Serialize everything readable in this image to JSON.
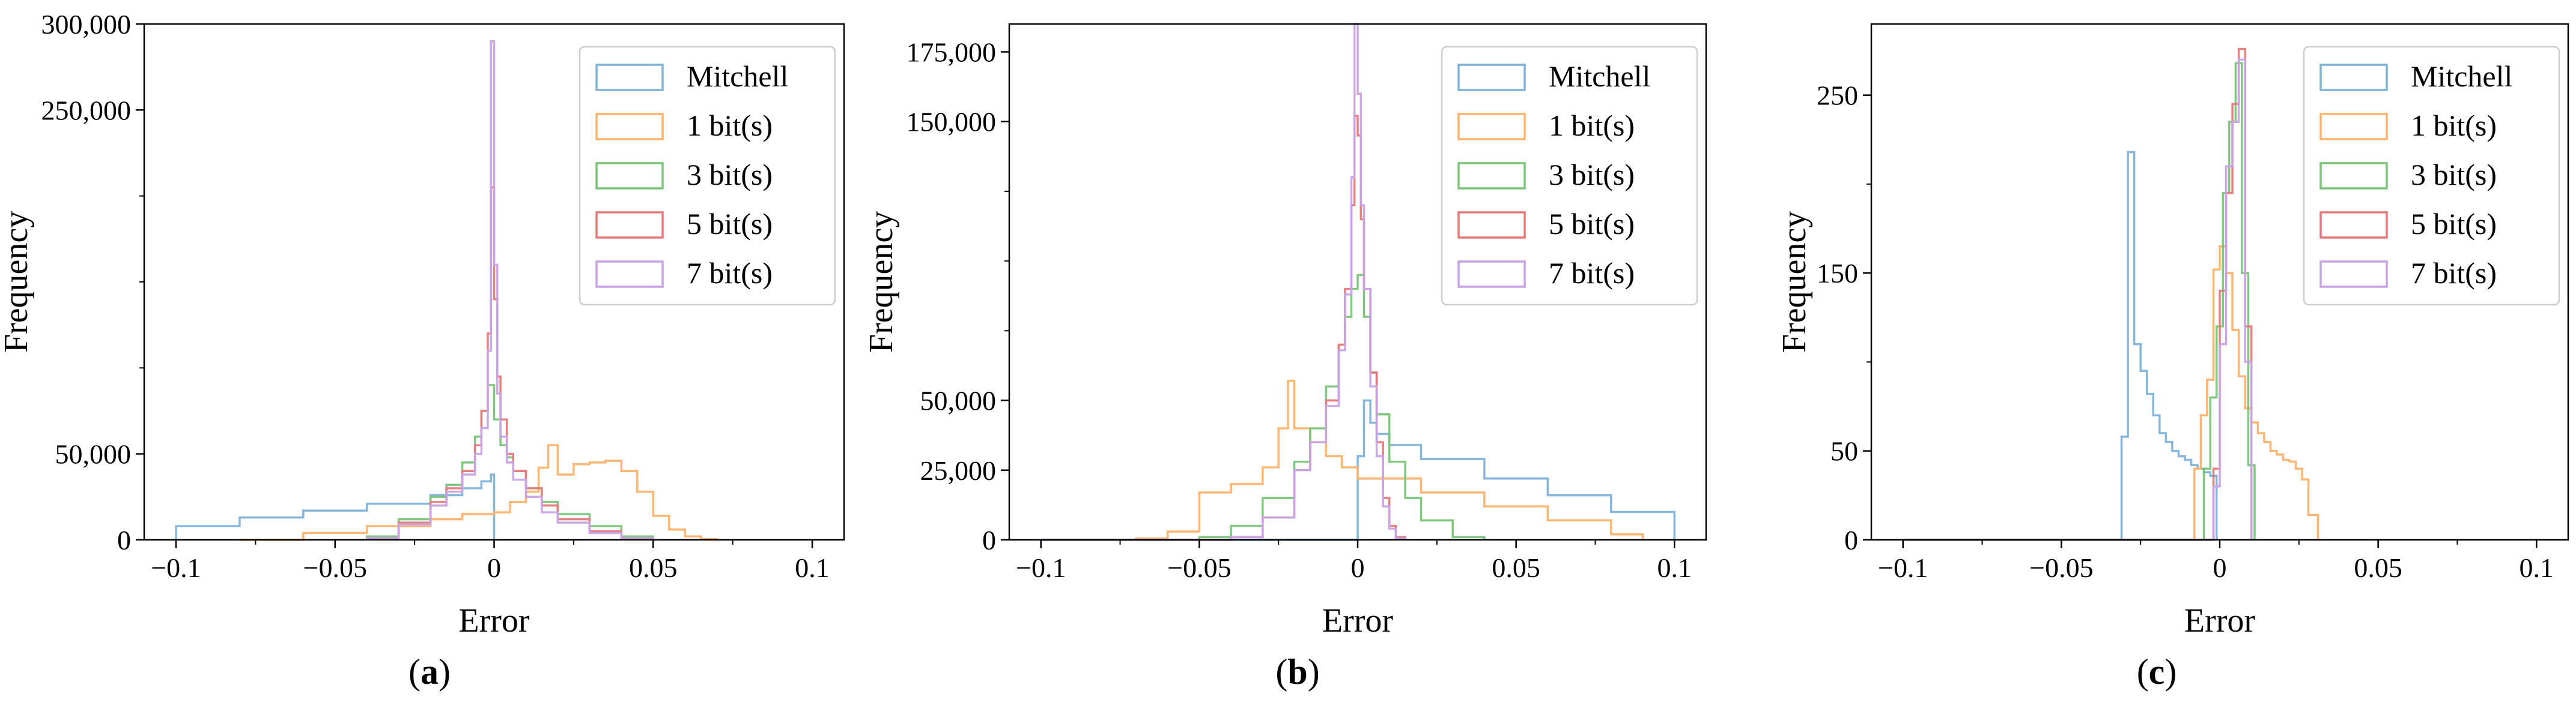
{
  "figure": {
    "panel_labels": [
      "(a)",
      "(b)",
      "(c)"
    ],
    "colors": {
      "Mitchell": "#7fb2d9",
      "1 bit(s)": "#ffb26b",
      "3 bit(s)": "#79c479",
      "5 bit(s)": "#e57a7b",
      "7 bit(s)": "#c9a3e6"
    }
  },
  "chart_data": [
    {
      "type": "histogram",
      "panel": "(a)",
      "xlabel": "Error",
      "ylabel": "Frequency",
      "xlim": [
        -0.11,
        0.11
      ],
      "ylim": [
        0,
        300000
      ],
      "xticks": [
        -0.1,
        -0.05,
        0,
        0.05,
        0.1
      ],
      "xtick_labels": [
        "−0.1",
        "−0.05",
        "0",
        "0.05",
        "0.1"
      ],
      "yticks": [
        0,
        50000,
        250000,
        300000
      ],
      "ytick_labels": [
        "0",
        "50,000",
        "250,000",
        "300,000"
      ],
      "yminor": [
        100000,
        150000,
        200000
      ],
      "legend": [
        "Mitchell",
        "1 bit(s)",
        "3 bit(s)",
        "5 bit(s)",
        "7 bit(s)"
      ],
      "series": [
        {
          "name": "Mitchell",
          "x": [
            -0.1,
            -0.08,
            -0.06,
            -0.04,
            -0.02,
            -0.01,
            -0.004,
            -0.001,
            0
          ],
          "y": [
            8000,
            13000,
            17000,
            21000,
            26000,
            30000,
            34000,
            38000,
            2000
          ],
          "endx": 0
        },
        {
          "name": "1 bit(s)",
          "x": [
            -0.08,
            -0.06,
            -0.04,
            -0.02,
            -0.01,
            0,
            0.005,
            0.01,
            0.014,
            0.017,
            0.02,
            0.025,
            0.03,
            0.035,
            0.04,
            0.045,
            0.05,
            0.055,
            0.06,
            0.065
          ],
          "y": [
            0,
            4000,
            8000,
            12000,
            15000,
            16000,
            22000,
            28000,
            42000,
            55000,
            38000,
            44000,
            45000,
            46000,
            40000,
            28000,
            14000,
            6000,
            2000,
            500
          ],
          "endx": 0.07
        },
        {
          "name": "3 bit(s)",
          "x": [
            -0.04,
            -0.03,
            -0.02,
            -0.015,
            -0.01,
            -0.006,
            -0.004,
            -0.002,
            0,
            0.002,
            0.004,
            0.006,
            0.01,
            0.015,
            0.02,
            0.03,
            0.04
          ],
          "y": [
            2000,
            12000,
            25000,
            32000,
            45000,
            60000,
            75000,
            90000,
            70000,
            55000,
            48000,
            40000,
            30000,
            22000,
            15000,
            8000,
            2000
          ],
          "endx": 0.05
        },
        {
          "name": "5 bit(s)",
          "x": [
            -0.04,
            -0.03,
            -0.02,
            -0.015,
            -0.01,
            -0.006,
            -0.004,
            -0.002,
            -0.001,
            0,
            0.001,
            0.002,
            0.004,
            0.006,
            0.01,
            0.015,
            0.02,
            0.03,
            0.04
          ],
          "y": [
            1000,
            10000,
            22000,
            30000,
            40000,
            55000,
            75000,
            120000,
            205000,
            140000,
            95000,
            70000,
            50000,
            40000,
            30000,
            20000,
            12000,
            5000,
            1000
          ],
          "endx": 0.05
        },
        {
          "name": "7 bit(s)",
          "x": [
            -0.04,
            -0.03,
            -0.02,
            -0.015,
            -0.01,
            -0.006,
            -0.004,
            -0.002,
            -0.001,
            0,
            0.001,
            0.002,
            0.004,
            0.006,
            0.01,
            0.015,
            0.02,
            0.03,
            0.04
          ],
          "y": [
            1000,
            9000,
            20000,
            28000,
            38000,
            50000,
            65000,
            110000,
            290000,
            160000,
            85000,
            60000,
            45000,
            35000,
            25000,
            16000,
            10000,
            4000,
            1000
          ],
          "endx": 0.05
        }
      ]
    },
    {
      "type": "histogram",
      "panel": "(b)",
      "xlabel": "Error",
      "ylabel": "Frequency",
      "xlim": [
        -0.11,
        0.11
      ],
      "ylim": [
        0,
        185000
      ],
      "xticks": [
        -0.1,
        -0.05,
        0,
        0.05,
        0.1
      ],
      "xtick_labels": [
        "−0.1",
        "−0.05",
        "0",
        "0.05",
        "0.1"
      ],
      "yticks": [
        0,
        25000,
        50000,
        150000,
        175000
      ],
      "ytick_labels": [
        "0",
        "25,000",
        "50,000",
        "150,000",
        "175,000"
      ],
      "yminor": [
        75000,
        100000,
        125000
      ],
      "legend": [
        "Mitchell",
        "1 bit(s)",
        "3 bit(s)",
        "5 bit(s)",
        "7 bit(s)"
      ],
      "series": [
        {
          "name": "Mitchell",
          "x": [
            -0.1,
            -0.001,
            0,
            0.002,
            0.004,
            0.006,
            0.01,
            0.02,
            0.04,
            0.06,
            0.08
          ],
          "y": [
            0,
            0,
            30000,
            50000,
            42000,
            38000,
            34000,
            29000,
            22000,
            16000,
            10000
          ],
          "endx": 0.1
        },
        {
          "name": "1 bit(s)",
          "x": [
            -0.1,
            -0.07,
            -0.06,
            -0.05,
            -0.04,
            -0.03,
            -0.025,
            -0.022,
            -0.02,
            -0.015,
            -0.01,
            -0.005,
            0,
            0.02,
            0.04,
            0.06,
            0.08
          ],
          "y": [
            0,
            500,
            3000,
            17000,
            20000,
            26000,
            40000,
            57000,
            40000,
            35000,
            30000,
            26000,
            22000,
            17000,
            12000,
            7000,
            2000
          ],
          "endx": 0.09
        },
        {
          "name": "3 bit(s)",
          "x": [
            -0.1,
            -0.05,
            -0.04,
            -0.03,
            -0.02,
            -0.015,
            -0.01,
            -0.006,
            -0.004,
            -0.002,
            0,
            0.002,
            0.004,
            0.006,
            0.01,
            0.015,
            0.02,
            0.03
          ],
          "y": [
            0,
            1000,
            5000,
            15000,
            28000,
            40000,
            55000,
            70000,
            80000,
            90000,
            95000,
            80000,
            60000,
            45000,
            28000,
            15000,
            7000,
            1000
          ],
          "endx": 0.04
        },
        {
          "name": "5 bit(s)",
          "x": [
            -0.1,
            -0.04,
            -0.03,
            -0.02,
            -0.015,
            -0.01,
            -0.006,
            -0.004,
            -0.002,
            -0.001,
            0,
            0.001,
            0.002,
            0.004,
            0.006,
            0.008,
            0.01,
            0.012
          ],
          "y": [
            0,
            1000,
            8000,
            25000,
            35000,
            50000,
            70000,
            90000,
            120000,
            152000,
            145000,
            115000,
            90000,
            60000,
            35000,
            15000,
            5000,
            1000
          ],
          "endx": 0.015
        },
        {
          "name": "7 bit(s)",
          "x": [
            -0.1,
            -0.04,
            -0.03,
            -0.02,
            -0.015,
            -0.01,
            -0.006,
            -0.004,
            -0.002,
            -0.001,
            0,
            0.001,
            0.002,
            0.004,
            0.006,
            0.008,
            0.01,
            0.012
          ],
          "y": [
            0,
            1000,
            8000,
            25000,
            35000,
            48000,
            68000,
            88000,
            130000,
            185000,
            160000,
            120000,
            90000,
            55000,
            30000,
            12000,
            4000,
            500
          ],
          "endx": 0.015
        }
      ]
    },
    {
      "type": "histogram",
      "panel": "(c)",
      "xlabel": "Error",
      "ylabel": "Frequency",
      "xlim": [
        -0.11,
        0.11
      ],
      "ylim": [
        0,
        290
      ],
      "xticks": [
        -0.1,
        -0.05,
        0,
        0.05,
        0.1
      ],
      "xtick_labels": [
        "−0.1",
        "−0.05",
        "0",
        "0.05",
        "0.1"
      ],
      "yticks": [
        0,
        50,
        150,
        250
      ],
      "ytick_labels": [
        "0",
        "50",
        "150",
        "250"
      ],
      "yminor": [
        100,
        200
      ],
      "legend": [
        "Mitchell",
        "1 bit(s)",
        "3 bit(s)",
        "5 bit(s)",
        "7 bit(s)"
      ],
      "series": [
        {
          "name": "Mitchell",
          "x": [
            -0.1,
            -0.031,
            -0.029,
            -0.027,
            -0.025,
            -0.023,
            -0.021,
            -0.019,
            -0.017,
            -0.015,
            -0.013,
            -0.011,
            -0.009,
            -0.007,
            -0.005,
            -0.003
          ],
          "y": [
            0,
            58,
            218,
            110,
            95,
            82,
            70,
            60,
            55,
            50,
            47,
            45,
            42,
            40,
            38,
            36
          ],
          "endx": -0.001
        },
        {
          "name": "1 bit(s)",
          "x": [
            -0.1,
            -0.008,
            -0.006,
            -0.004,
            -0.002,
            0,
            0.002,
            0.004,
            0.006,
            0.008,
            0.01,
            0.012,
            0.014,
            0.016,
            0.018,
            0.02,
            0.022,
            0.024,
            0.026,
            0.028
          ],
          "y": [
            0,
            40,
            70,
            90,
            152,
            165,
            150,
            118,
            92,
            74,
            66,
            60,
            55,
            50,
            48,
            45,
            44,
            40,
            34,
            14
          ],
          "endx": 0.031
        },
        {
          "name": "3 bit(s)",
          "x": [
            -0.1,
            -0.005,
            -0.003,
            -0.001,
            0.001,
            0.003,
            0.005,
            0.007,
            0.009
          ],
          "y": [
            0,
            40,
            80,
            120,
            195,
            235,
            268,
            150,
            42
          ],
          "endx": 0.011
        },
        {
          "name": "5 bit(s)",
          "x": [
            -0.1,
            -0.002,
            0,
            0.002,
            0.004,
            0.006,
            0.008
          ],
          "y": [
            0,
            40,
            140,
            195,
            245,
            276,
            120
          ],
          "endx": 0.01
        },
        {
          "name": "7 bit(s)",
          "x": [
            -0.1,
            -0.002,
            0,
            0.002,
            0.004,
            0.006,
            0.008
          ],
          "y": [
            0,
            30,
            110,
            210,
            235,
            270,
            100
          ],
          "endx": 0.01
        }
      ]
    }
  ]
}
